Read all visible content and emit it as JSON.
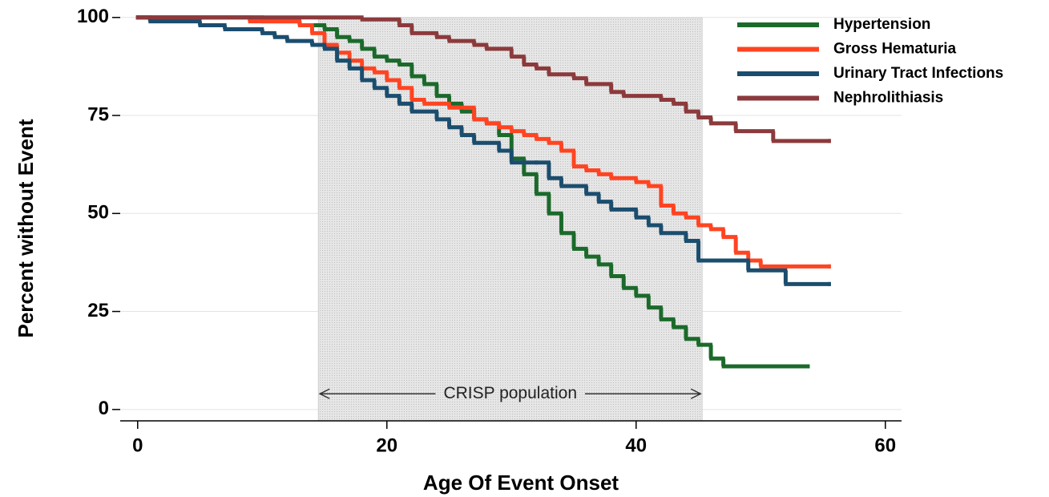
{
  "chart_data": {
    "type": "step",
    "x_label": "Age Of Event Onset",
    "y_label": "Percent without Event",
    "xlim": [
      -1.4,
      61.3
    ],
    "ylim": [
      -2.9,
      102
    ],
    "xticks": [
      0,
      20,
      40,
      60
    ],
    "yticks": [
      0,
      25,
      50,
      75,
      100
    ],
    "grid": true,
    "legend": "top-right",
    "annotations": [
      {
        "text": "CRISP population",
        "x": [
          14.5,
          45.3
        ],
        "y": 4
      }
    ],
    "series": [
      {
        "name": "Hypertension",
        "color": "#1b6a2b",
        "x": [
          0,
          10,
          13,
          15,
          16,
          17,
          18,
          19,
          20,
          21,
          22,
          23,
          24,
          25,
          26,
          27,
          28,
          29,
          30,
          31,
          32,
          33,
          34,
          35,
          36,
          37,
          38,
          39,
          40,
          41,
          42,
          43,
          44,
          45,
          46,
          47,
          53.8
        ],
        "values": [
          100,
          99,
          98,
          97,
          95,
          94,
          92,
          90,
          89,
          88,
          85,
          83,
          80,
          78,
          76,
          74,
          73,
          70,
          64,
          60,
          55,
          50,
          45,
          41,
          39,
          37,
          34,
          31,
          29,
          26,
          23,
          21,
          18,
          16.5,
          13,
          11,
          11
        ]
      },
      {
        "name": "Gross Hematuria",
        "color": "#ff4422",
        "x": [
          0,
          9,
          13,
          14,
          15,
          16,
          17,
          18,
          19,
          20,
          21,
          22,
          23,
          25,
          27,
          28,
          29,
          30,
          31,
          32,
          33,
          34,
          35,
          36,
          37,
          38,
          40,
          41,
          42,
          43,
          44,
          45,
          46,
          47,
          48,
          49,
          50,
          55.5
        ],
        "values": [
          100,
          99,
          98,
          96,
          93,
          91,
          89,
          87,
          86,
          84,
          82,
          79,
          78,
          77,
          74,
          73,
          72,
          71,
          70,
          69,
          68,
          66,
          62,
          61,
          60,
          59,
          58,
          57,
          52,
          50,
          49,
          47,
          46,
          44,
          40,
          38,
          36.5,
          36.5
        ]
      },
      {
        "name": "Urinary Tract Infections",
        "color": "#1b4d6e",
        "x": [
          0,
          1,
          5,
          7,
          10,
          11,
          12,
          14,
          15,
          16,
          17,
          18,
          19,
          20,
          21,
          22,
          24,
          25,
          26,
          27,
          29,
          30,
          32,
          33,
          34,
          36,
          37,
          38,
          40,
          41,
          42,
          44,
          45,
          49,
          52,
          55.5
        ],
        "values": [
          100,
          99,
          98,
          97,
          96,
          95,
          94,
          93,
          92,
          89,
          87,
          84,
          82,
          80,
          78,
          76,
          74,
          72,
          70,
          68,
          66,
          63,
          63,
          59,
          57,
          55,
          53,
          51,
          49,
          47,
          45,
          43,
          38,
          35.5,
          32,
          32
        ]
      },
      {
        "name": "Nephrolithiasis",
        "color": "#8c3a3c",
        "x": [
          0,
          18,
          21,
          22,
          24,
          25,
          27,
          28,
          30,
          31,
          32,
          33,
          35,
          36,
          38,
          39,
          42,
          43,
          44,
          45,
          46,
          48,
          51,
          55.5
        ],
        "values": [
          100,
          99.5,
          98,
          96,
          95,
          94,
          93,
          92,
          90,
          88,
          87,
          85.5,
          84.5,
          83,
          81,
          80,
          79,
          78,
          76,
          74.5,
          73,
          71,
          68.5,
          68.5
        ]
      }
    ]
  }
}
